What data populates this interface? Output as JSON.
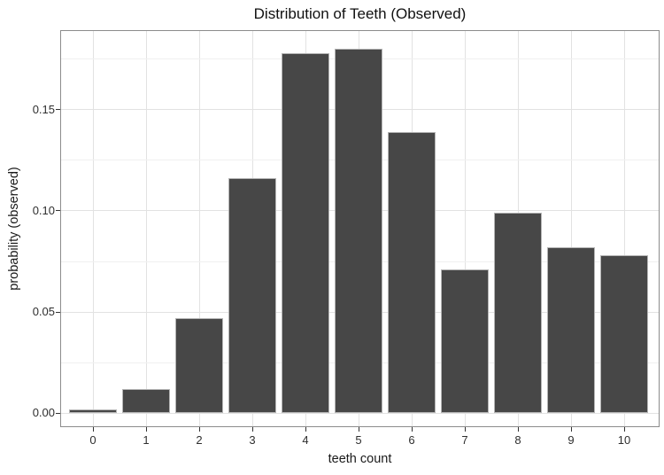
{
  "chart_data": {
    "type": "bar",
    "title": "Distribution of Teeth (Observed)",
    "xlabel": "teeth count",
    "ylabel": "probability (observed)",
    "categories": [
      "0",
      "1",
      "2",
      "3",
      "4",
      "5",
      "6",
      "7",
      "8",
      "9",
      "10"
    ],
    "values": [
      0.002,
      0.012,
      0.047,
      0.116,
      0.178,
      0.18,
      0.139,
      0.071,
      0.099,
      0.082,
      0.078
    ],
    "series_name": "probability (observed)",
    "y_major_ticks": [
      0,
      0.05,
      0.1,
      0.15
    ],
    "y_tick_labels": [
      "0.00",
      "0.05",
      "0.10",
      "0.15"
    ],
    "y_minor_ticks": [
      0.025,
      0.075,
      0.125,
      0.175
    ],
    "ylim": [
      -0.0068,
      0.1892
    ],
    "grid": "on",
    "legend": "none",
    "bar_color": "#474747",
    "bar_border_color": "#b5b5b5",
    "panel_border_color": "#8c8c8c",
    "grid_major_color": "#e2e2e2",
    "grid_minor_color": "#f0f0f0",
    "tick_color": "#333333",
    "background_color": "#ffffff"
  }
}
